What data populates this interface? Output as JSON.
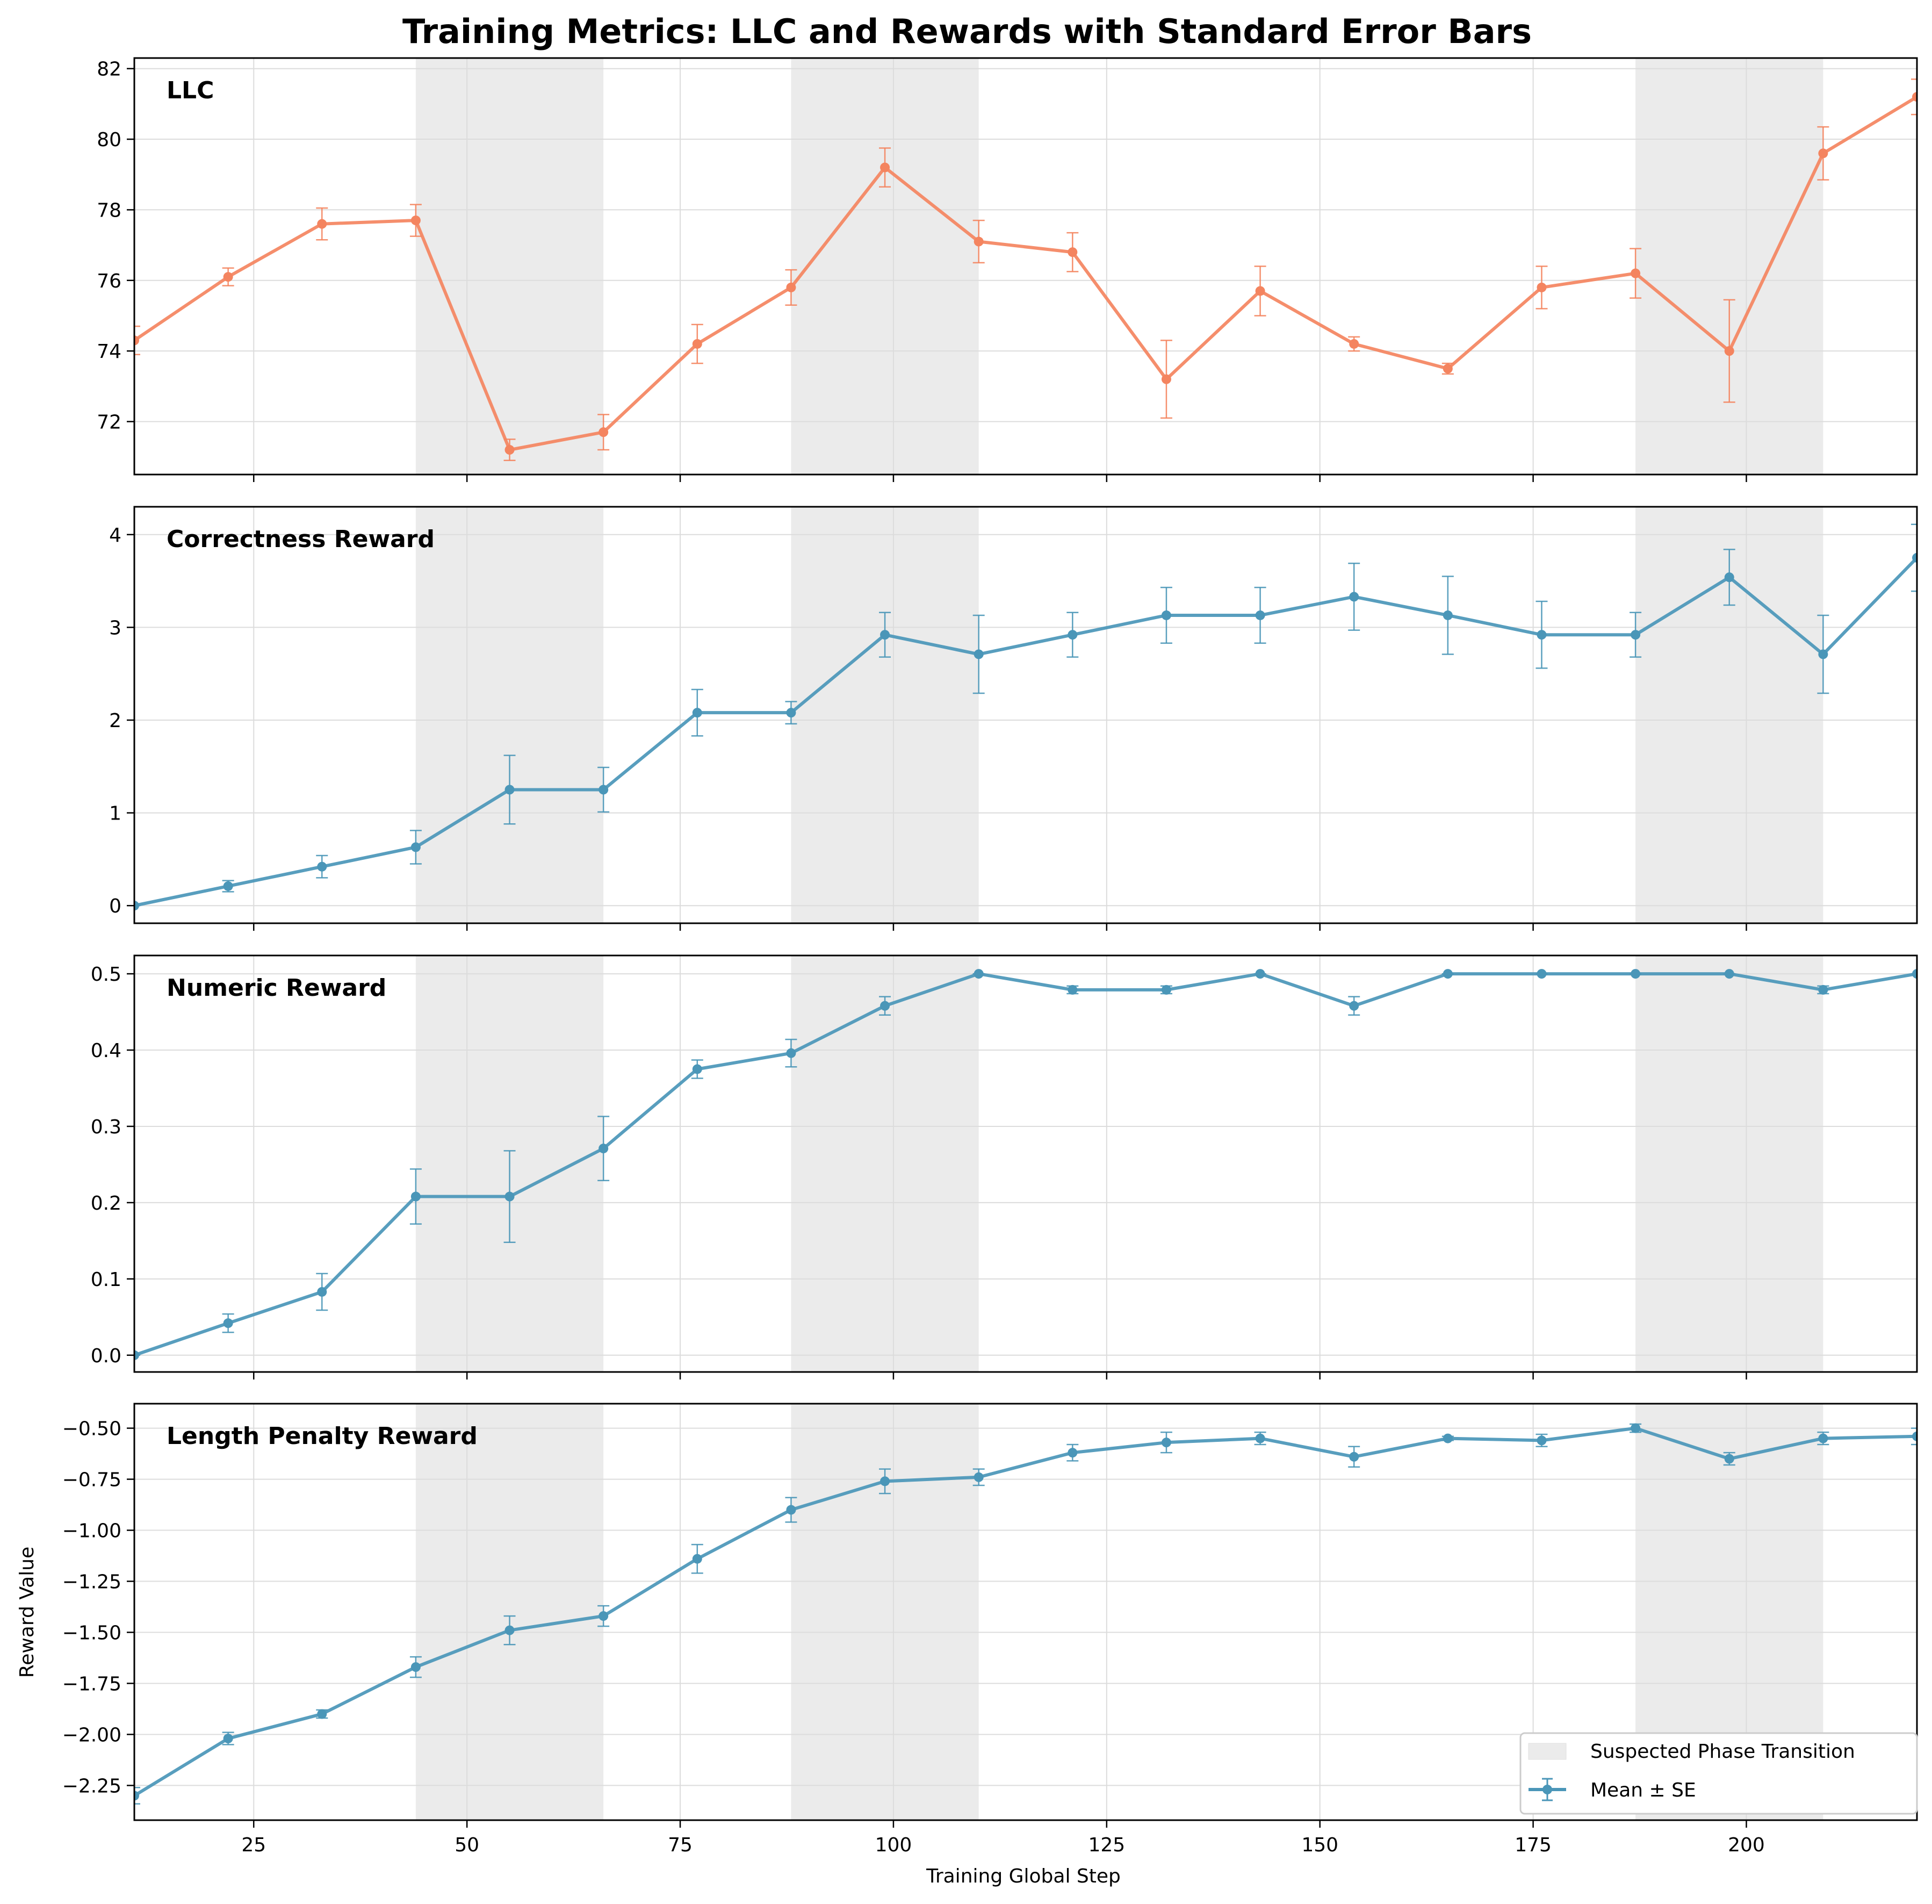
{
  "title": "Training Metrics: LLC and Rewards with Standard Error Bars",
  "xlabel": "Training Global Step",
  "legend": {
    "position": "lower-right",
    "entries": [
      "Suspected Phase Transition",
      "Mean ± SE"
    ]
  },
  "colors": {
    "llc": "#F4845F",
    "reward": "#4A96B8",
    "shade": "#D3D3D3",
    "grid": "#DCDCDC"
  },
  "chart_data": [
    {
      "type": "line",
      "name": "LLC",
      "panel_label": "LLC",
      "ylabel": "",
      "x": [
        11,
        22,
        33,
        44,
        55,
        66,
        77,
        88,
        99,
        110,
        121,
        132,
        143,
        154,
        165,
        176,
        187,
        198,
        209,
        220
      ],
      "y": [
        74.3,
        76.1,
        77.6,
        77.7,
        71.2,
        71.7,
        74.2,
        75.8,
        79.2,
        77.1,
        76.8,
        73.2,
        75.7,
        74.2,
        73.5,
        75.8,
        76.2,
        74.0,
        79.6,
        81.2
      ],
      "se": [
        0.4,
        0.25,
        0.45,
        0.45,
        0.3,
        0.5,
        0.55,
        0.5,
        0.55,
        0.6,
        0.55,
        1.1,
        0.7,
        0.2,
        0.15,
        0.6,
        0.7,
        1.45,
        0.75,
        0.5
      ],
      "xlim": [
        11,
        220
      ],
      "ylim": [
        70.5,
        82.3
      ],
      "yticks": [
        72,
        74,
        76,
        78,
        80,
        82
      ],
      "ytick_labels": [
        "72",
        "74",
        "76",
        "78",
        "80",
        "82"
      ],
      "phase_transitions": [
        [
          44,
          66
        ],
        [
          88,
          110
        ],
        [
          187,
          209
        ]
      ],
      "grid": true
    },
    {
      "type": "line",
      "name": "Correctness Reward",
      "panel_label": "Correctness Reward",
      "ylabel": "",
      "x": [
        11,
        22,
        33,
        44,
        55,
        66,
        77,
        88,
        99,
        110,
        121,
        132,
        143,
        154,
        165,
        176,
        187,
        198,
        209,
        220
      ],
      "y": [
        0.0,
        0.21,
        0.42,
        0.63,
        1.25,
        1.25,
        2.08,
        2.08,
        2.92,
        2.71,
        2.92,
        3.13,
        3.13,
        3.33,
        3.13,
        2.92,
        2.92,
        3.54,
        2.71,
        3.75
      ],
      "se": [
        0.0,
        0.06,
        0.12,
        0.18,
        0.37,
        0.24,
        0.25,
        0.12,
        0.24,
        0.42,
        0.24,
        0.3,
        0.3,
        0.36,
        0.42,
        0.36,
        0.24,
        0.3,
        0.42,
        0.36
      ],
      "xlim": [
        11,
        220
      ],
      "ylim": [
        -0.19,
        4.3
      ],
      "yticks": [
        0,
        1,
        2,
        3,
        4
      ],
      "ytick_labels": [
        "0",
        "1",
        "2",
        "3",
        "4"
      ],
      "phase_transitions": [
        [
          44,
          66
        ],
        [
          88,
          110
        ],
        [
          187,
          209
        ]
      ],
      "grid": true
    },
    {
      "type": "line",
      "name": "Numeric Reward",
      "panel_label": "Numeric Reward",
      "ylabel": "",
      "x": [
        11,
        22,
        33,
        44,
        55,
        66,
        77,
        88,
        99,
        110,
        121,
        132,
        143,
        154,
        165,
        176,
        187,
        198,
        209,
        220
      ],
      "y": [
        0.0,
        0.042,
        0.083,
        0.208,
        0.208,
        0.271,
        0.375,
        0.396,
        0.458,
        0.5,
        0.479,
        0.479,
        0.5,
        0.458,
        0.5,
        0.5,
        0.5,
        0.5,
        0.479,
        0.5
      ],
      "se": [
        0.0,
        0.012,
        0.024,
        0.036,
        0.06,
        0.042,
        0.012,
        0.018,
        0.012,
        0.0,
        0.005,
        0.005,
        0.0,
        0.012,
        0.0,
        0.0,
        0.0,
        0.0,
        0.005,
        0.0
      ],
      "xlim": [
        11,
        220
      ],
      "ylim": [
        -0.022,
        0.524
      ],
      "yticks": [
        0.0,
        0.1,
        0.2,
        0.3,
        0.4,
        0.5
      ],
      "ytick_labels": [
        "0.0",
        "0.1",
        "0.2",
        "0.3",
        "0.4",
        "0.5"
      ],
      "phase_transitions": [
        [
          44,
          66
        ],
        [
          88,
          110
        ],
        [
          187,
          209
        ]
      ],
      "grid": true
    },
    {
      "type": "line",
      "name": "Length Penalty Reward",
      "panel_label": "Length Penalty Reward",
      "ylabel": "Reward Value",
      "x": [
        11,
        22,
        33,
        44,
        55,
        66,
        77,
        88,
        99,
        110,
        121,
        132,
        143,
        154,
        165,
        176,
        187,
        198,
        209,
        220
      ],
      "y": [
        -2.3,
        -2.02,
        -1.9,
        -1.67,
        -1.49,
        -1.42,
        -1.14,
        -0.9,
        -0.76,
        -0.74,
        -0.62,
        -0.57,
        -0.55,
        -0.64,
        -0.55,
        -0.56,
        -0.5,
        -0.65,
        -0.55,
        -0.54
      ],
      "se": [
        0.04,
        0.03,
        0.02,
        0.05,
        0.07,
        0.05,
        0.07,
        0.06,
        0.06,
        0.04,
        0.04,
        0.05,
        0.03,
        0.05,
        0.01,
        0.03,
        0.02,
        0.03,
        0.03,
        0.04
      ],
      "xlim": [
        11,
        220
      ],
      "ylim": [
        -2.42,
        -0.38
      ],
      "yticks": [
        -2.25,
        -2.0,
        -1.75,
        -1.5,
        -1.25,
        -1.0,
        -0.75,
        -0.5
      ],
      "ytick_labels": [
        "−2.25",
        "−2.00",
        "−1.75",
        "−1.50",
        "−1.25",
        "−1.00",
        "−0.75",
        "−0.50"
      ],
      "phase_transitions": [
        [
          44,
          66
        ],
        [
          88,
          110
        ],
        [
          187,
          209
        ]
      ],
      "grid": true
    }
  ],
  "xticks": [
    25,
    50,
    75,
    100,
    125,
    150,
    175,
    200
  ],
  "xtick_labels": [
    "25",
    "50",
    "75",
    "100",
    "125",
    "150",
    "175",
    "200"
  ]
}
